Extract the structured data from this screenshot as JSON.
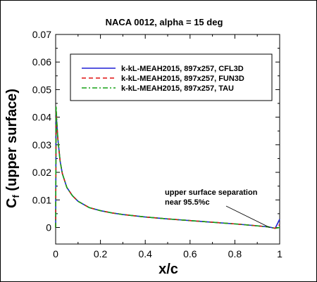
{
  "chart_data": {
    "type": "line",
    "title": "NACA 0012, alpha = 15 deg",
    "xlabel": "x/c",
    "ylabel": "C",
    "ylabel_sub": "f",
    "ylabel_suffix": " (upper surface)",
    "xlim": [
      0,
      1
    ],
    "ylim": [
      -0.006,
      0.07
    ],
    "xticks": [
      "0",
      "0.2",
      "0.4",
      "0.6",
      "0.8",
      "1"
    ],
    "xtick_values": [
      0,
      0.2,
      0.4,
      0.6,
      0.8,
      1
    ],
    "yticks": [
      "0",
      "0.01",
      "0.02",
      "0.03",
      "0.04",
      "0.05",
      "0.06",
      "0.07"
    ],
    "ytick_values": [
      0,
      0.01,
      0.02,
      0.03,
      0.04,
      0.05,
      0.06,
      0.07
    ],
    "grid": false,
    "legend_position": "upper-right",
    "x": [
      0,
      0.002,
      0.005,
      0.01,
      0.02,
      0.03,
      0.05,
      0.075,
      0.1,
      0.15,
      0.2,
      0.25,
      0.3,
      0.4,
      0.5,
      0.6,
      0.7,
      0.8,
      0.9,
      0.95,
      0.98,
      1.0
    ],
    "series": [
      {
        "name": "k-kL-MEAH2015, 897x257, CFL3D",
        "color": "#1f1fd6",
        "dash": "solid",
        "values": [
          0,
          0.042,
          0.038,
          0.032,
          0.024,
          0.0195,
          0.0145,
          0.0115,
          0.0095,
          0.0072,
          0.0061,
          0.0053,
          0.0047,
          0.0038,
          0.0031,
          0.0025,
          0.0019,
          0.0013,
          0.0006,
          0.0002,
          -0.0003,
          0.003
        ]
      },
      {
        "name": "k-kL-MEAH2015, 897x257, FUN3D",
        "color": "#e01010",
        "dash": "dashed",
        "values": [
          0,
          0.042,
          0.038,
          0.032,
          0.024,
          0.0195,
          0.0145,
          0.0115,
          0.0095,
          0.0072,
          0.0061,
          0.0053,
          0.0047,
          0.0038,
          0.0031,
          0.0025,
          0.0019,
          0.0013,
          0.0006,
          0.0002,
          -0.0003,
          0.001
        ]
      },
      {
        "name": "k-kL-MEAH2015, 897x257, TAU",
        "color": "#16a016",
        "dash": "dashdot",
        "values": [
          0,
          0.044,
          0.039,
          0.032,
          0.024,
          0.0195,
          0.0145,
          0.0115,
          0.0095,
          0.0072,
          0.0061,
          0.0053,
          0.0047,
          0.0038,
          0.0031,
          0.0025,
          0.0019,
          0.0013,
          0.0006,
          0.0002,
          -0.0003,
          0.0
        ]
      }
    ],
    "annotation": {
      "lines": [
        "upper surface separation",
        "near 95.5%c"
      ],
      "target_x": 0.955,
      "target_y": 0.0
    }
  }
}
